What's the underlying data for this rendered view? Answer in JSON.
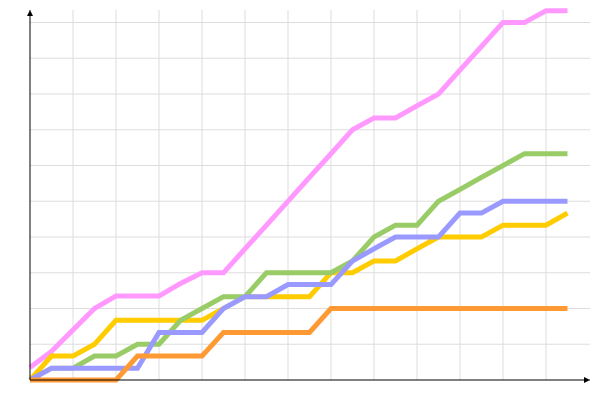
{
  "chart_data": {
    "type": "line",
    "title": "",
    "xlabel": "",
    "ylabel": "",
    "x": [
      0,
      1,
      2,
      3,
      4,
      5,
      6,
      7,
      8,
      9,
      10,
      11,
      12,
      13,
      14,
      15,
      16,
      17,
      18,
      19,
      20,
      21,
      22,
      23,
      24,
      25
    ],
    "xlim": [
      0,
      26
    ],
    "ylim": [
      0,
      10.35
    ],
    "grid": true,
    "x_grid_every": 2,
    "y_grid_every": 1,
    "legend": "none",
    "series": [
      {
        "color": "#ff99ff",
        "values": [
          0.35,
          0.8,
          1.4,
          2.0,
          2.35,
          2.35,
          2.35,
          2.7,
          3.0,
          3.0,
          3.67,
          4.33,
          5.0,
          5.67,
          6.33,
          7.0,
          7.33,
          7.33,
          7.67,
          8.0,
          8.67,
          9.33,
          10.0,
          10.0,
          10.33,
          10.33
        ]
      },
      {
        "color": "#ffcc00",
        "values": [
          0,
          0.67,
          0.67,
          1.0,
          1.67,
          1.67,
          1.67,
          1.67,
          1.67,
          2.0,
          2.33,
          2.33,
          2.33,
          2.33,
          3.0,
          3.0,
          3.33,
          3.33,
          3.67,
          4.0,
          4.0,
          4.0,
          4.33,
          4.33,
          4.33,
          4.67
        ]
      },
      {
        "color": "#99cc66",
        "values": [
          0,
          0.33,
          0.33,
          0.67,
          0.67,
          1.0,
          1.0,
          1.67,
          2.0,
          2.33,
          2.33,
          3.0,
          3.0,
          3.0,
          3.0,
          3.33,
          4.0,
          4.33,
          4.33,
          5.0,
          5.33,
          5.67,
          6.0,
          6.33,
          6.33,
          6.33
        ]
      },
      {
        "color": "#9999ff",
        "values": [
          0,
          0.33,
          0.33,
          0.33,
          0.33,
          0.33,
          1.33,
          1.33,
          1.33,
          2.0,
          2.33,
          2.33,
          2.67,
          2.67,
          2.67,
          3.33,
          3.67,
          4.0,
          4.0,
          4.0,
          4.67,
          4.67,
          5.0,
          5.0,
          5.0,
          5.0
        ]
      },
      {
        "color": "#ff9933",
        "values": [
          0,
          0,
          0,
          0,
          0,
          0.67,
          0.67,
          0.67,
          0.67,
          1.33,
          1.33,
          1.33,
          1.33,
          1.33,
          2.0,
          2.0,
          2.0,
          2.0,
          2.0,
          2.0,
          2.0,
          2.0,
          2.0,
          2.0,
          2.0,
          2.0
        ]
      }
    ]
  }
}
